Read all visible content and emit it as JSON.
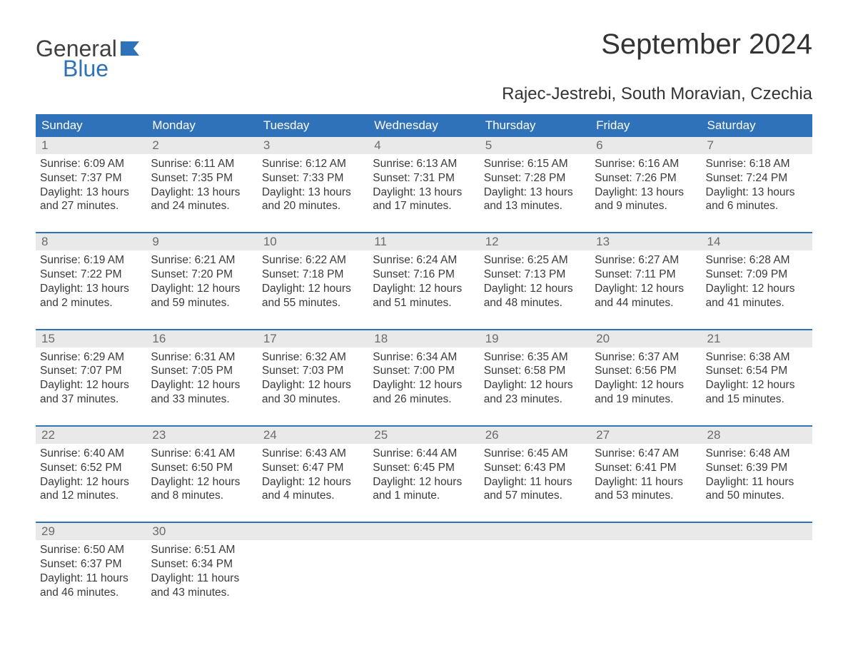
{
  "logo": {
    "line1": "General",
    "line2": "Blue",
    "flag_color": "#2f72b9",
    "text_color": "#404040"
  },
  "title": "September 2024",
  "location": "Rajec-Jestrebi, South Moravian, Czechia",
  "colors": {
    "header_bg": "#2f72b9",
    "header_text": "#ffffff",
    "daynum_bg": "#e9e9e9",
    "daynum_text": "#6b6b6b",
    "body_text": "#3a3a3a",
    "week_divider": "#2f72b9",
    "page_bg": "#ffffff"
  },
  "typography": {
    "title_fontsize": 40,
    "subtitle_fontsize": 24,
    "header_fontsize": 17,
    "daynum_fontsize": 17,
    "body_fontsize": 15.5,
    "font_family": "Arial"
  },
  "day_names": [
    "Sunday",
    "Monday",
    "Tuesday",
    "Wednesday",
    "Thursday",
    "Friday",
    "Saturday"
  ],
  "weeks": [
    [
      {
        "day": "1",
        "sunrise": "Sunrise: 6:09 AM",
        "sunset": "Sunset: 7:37 PM",
        "dl1": "Daylight: 13 hours",
        "dl2": "and 27 minutes."
      },
      {
        "day": "2",
        "sunrise": "Sunrise: 6:11 AM",
        "sunset": "Sunset: 7:35 PM",
        "dl1": "Daylight: 13 hours",
        "dl2": "and 24 minutes."
      },
      {
        "day": "3",
        "sunrise": "Sunrise: 6:12 AM",
        "sunset": "Sunset: 7:33 PM",
        "dl1": "Daylight: 13 hours",
        "dl2": "and 20 minutes."
      },
      {
        "day": "4",
        "sunrise": "Sunrise: 6:13 AM",
        "sunset": "Sunset: 7:31 PM",
        "dl1": "Daylight: 13 hours",
        "dl2": "and 17 minutes."
      },
      {
        "day": "5",
        "sunrise": "Sunrise: 6:15 AM",
        "sunset": "Sunset: 7:28 PM",
        "dl1": "Daylight: 13 hours",
        "dl2": "and 13 minutes."
      },
      {
        "day": "6",
        "sunrise": "Sunrise: 6:16 AM",
        "sunset": "Sunset: 7:26 PM",
        "dl1": "Daylight: 13 hours",
        "dl2": "and 9 minutes."
      },
      {
        "day": "7",
        "sunrise": "Sunrise: 6:18 AM",
        "sunset": "Sunset: 7:24 PM",
        "dl1": "Daylight: 13 hours",
        "dl2": "and 6 minutes."
      }
    ],
    [
      {
        "day": "8",
        "sunrise": "Sunrise: 6:19 AM",
        "sunset": "Sunset: 7:22 PM",
        "dl1": "Daylight: 13 hours",
        "dl2": "and 2 minutes."
      },
      {
        "day": "9",
        "sunrise": "Sunrise: 6:21 AM",
        "sunset": "Sunset: 7:20 PM",
        "dl1": "Daylight: 12 hours",
        "dl2": "and 59 minutes."
      },
      {
        "day": "10",
        "sunrise": "Sunrise: 6:22 AM",
        "sunset": "Sunset: 7:18 PM",
        "dl1": "Daylight: 12 hours",
        "dl2": "and 55 minutes."
      },
      {
        "day": "11",
        "sunrise": "Sunrise: 6:24 AM",
        "sunset": "Sunset: 7:16 PM",
        "dl1": "Daylight: 12 hours",
        "dl2": "and 51 minutes."
      },
      {
        "day": "12",
        "sunrise": "Sunrise: 6:25 AM",
        "sunset": "Sunset: 7:13 PM",
        "dl1": "Daylight: 12 hours",
        "dl2": "and 48 minutes."
      },
      {
        "day": "13",
        "sunrise": "Sunrise: 6:27 AM",
        "sunset": "Sunset: 7:11 PM",
        "dl1": "Daylight: 12 hours",
        "dl2": "and 44 minutes."
      },
      {
        "day": "14",
        "sunrise": "Sunrise: 6:28 AM",
        "sunset": "Sunset: 7:09 PM",
        "dl1": "Daylight: 12 hours",
        "dl2": "and 41 minutes."
      }
    ],
    [
      {
        "day": "15",
        "sunrise": "Sunrise: 6:29 AM",
        "sunset": "Sunset: 7:07 PM",
        "dl1": "Daylight: 12 hours",
        "dl2": "and 37 minutes."
      },
      {
        "day": "16",
        "sunrise": "Sunrise: 6:31 AM",
        "sunset": "Sunset: 7:05 PM",
        "dl1": "Daylight: 12 hours",
        "dl2": "and 33 minutes."
      },
      {
        "day": "17",
        "sunrise": "Sunrise: 6:32 AM",
        "sunset": "Sunset: 7:03 PM",
        "dl1": "Daylight: 12 hours",
        "dl2": "and 30 minutes."
      },
      {
        "day": "18",
        "sunrise": "Sunrise: 6:34 AM",
        "sunset": "Sunset: 7:00 PM",
        "dl1": "Daylight: 12 hours",
        "dl2": "and 26 minutes."
      },
      {
        "day": "19",
        "sunrise": "Sunrise: 6:35 AM",
        "sunset": "Sunset: 6:58 PM",
        "dl1": "Daylight: 12 hours",
        "dl2": "and 23 minutes."
      },
      {
        "day": "20",
        "sunrise": "Sunrise: 6:37 AM",
        "sunset": "Sunset: 6:56 PM",
        "dl1": "Daylight: 12 hours",
        "dl2": "and 19 minutes."
      },
      {
        "day": "21",
        "sunrise": "Sunrise: 6:38 AM",
        "sunset": "Sunset: 6:54 PM",
        "dl1": "Daylight: 12 hours",
        "dl2": "and 15 minutes."
      }
    ],
    [
      {
        "day": "22",
        "sunrise": "Sunrise: 6:40 AM",
        "sunset": "Sunset: 6:52 PM",
        "dl1": "Daylight: 12 hours",
        "dl2": "and 12 minutes."
      },
      {
        "day": "23",
        "sunrise": "Sunrise: 6:41 AM",
        "sunset": "Sunset: 6:50 PM",
        "dl1": "Daylight: 12 hours",
        "dl2": "and 8 minutes."
      },
      {
        "day": "24",
        "sunrise": "Sunrise: 6:43 AM",
        "sunset": "Sunset: 6:47 PM",
        "dl1": "Daylight: 12 hours",
        "dl2": "and 4 minutes."
      },
      {
        "day": "25",
        "sunrise": "Sunrise: 6:44 AM",
        "sunset": "Sunset: 6:45 PM",
        "dl1": "Daylight: 12 hours",
        "dl2": "and 1 minute."
      },
      {
        "day": "26",
        "sunrise": "Sunrise: 6:45 AM",
        "sunset": "Sunset: 6:43 PM",
        "dl1": "Daylight: 11 hours",
        "dl2": "and 57 minutes."
      },
      {
        "day": "27",
        "sunrise": "Sunrise: 6:47 AM",
        "sunset": "Sunset: 6:41 PM",
        "dl1": "Daylight: 11 hours",
        "dl2": "and 53 minutes."
      },
      {
        "day": "28",
        "sunrise": "Sunrise: 6:48 AM",
        "sunset": "Sunset: 6:39 PM",
        "dl1": "Daylight: 11 hours",
        "dl2": "and 50 minutes."
      }
    ],
    [
      {
        "day": "29",
        "sunrise": "Sunrise: 6:50 AM",
        "sunset": "Sunset: 6:37 PM",
        "dl1": "Daylight: 11 hours",
        "dl2": "and 46 minutes."
      },
      {
        "day": "30",
        "sunrise": "Sunrise: 6:51 AM",
        "sunset": "Sunset: 6:34 PM",
        "dl1": "Daylight: 11 hours",
        "dl2": "and 43 minutes."
      },
      {
        "day": "",
        "sunrise": "",
        "sunset": "",
        "dl1": "",
        "dl2": ""
      },
      {
        "day": "",
        "sunrise": "",
        "sunset": "",
        "dl1": "",
        "dl2": ""
      },
      {
        "day": "",
        "sunrise": "",
        "sunset": "",
        "dl1": "",
        "dl2": ""
      },
      {
        "day": "",
        "sunrise": "",
        "sunset": "",
        "dl1": "",
        "dl2": ""
      },
      {
        "day": "",
        "sunrise": "",
        "sunset": "",
        "dl1": "",
        "dl2": ""
      }
    ]
  ]
}
